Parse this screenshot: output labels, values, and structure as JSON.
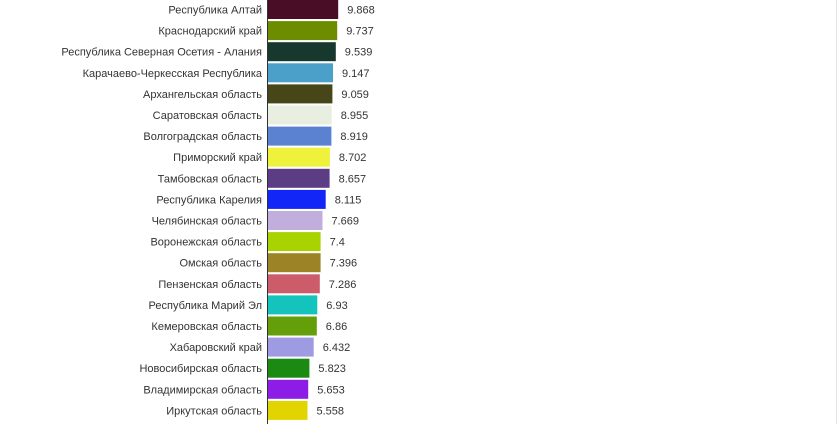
{
  "chart_data": {
    "type": "bar",
    "orientation": "horizontal",
    "categories": [
      "Республика Алтай",
      "Краснодарский край",
      "Республика Северная Осетия - Алания",
      "Карачаево-Черкесская Республика",
      "Архангельская область",
      "Саратовская область",
      "Волгоградская область",
      "Приморский край",
      "Тамбовская область",
      "Республика Карелия",
      "Челябинская область",
      "Воронежская область",
      "Омская область",
      "Пензенская область",
      "Республика Марий Эл",
      "Кемеровская область",
      "Хабаровский край",
      "Новосибирская область",
      "Владимирская область",
      "Иркутская область"
    ],
    "values": [
      9.868,
      9.737,
      9.539,
      9.147,
      9.059,
      8.955,
      8.919,
      8.702,
      8.657,
      8.115,
      7.669,
      7.4,
      7.396,
      7.286,
      6.93,
      6.86,
      6.432,
      5.823,
      5.653,
      5.558
    ],
    "value_labels": [
      "9.868",
      "9.737",
      "9.539",
      "9.147",
      "9.059",
      "8.955",
      "8.919",
      "8.702",
      "8.657",
      "8.115",
      "7.669",
      "7.4",
      "7.396",
      "7.286",
      "6.93",
      "6.86",
      "6.432",
      "5.823",
      "5.653",
      "5.558"
    ],
    "colors": [
      "#4a0d26",
      "#6e8c00",
      "#17392d",
      "#4aa0c8",
      "#464619",
      "#e8eee0",
      "#5b82d0",
      "#eef23b",
      "#5d3c86",
      "#1126f7",
      "#c1aedc",
      "#a8d200",
      "#9c8426",
      "#cc5c69",
      "#14c3bb",
      "#649e09",
      "#9f9be2",
      "#1b8a12",
      "#8d1ce6",
      "#e2d400"
    ],
    "title": "",
    "xlabel": "",
    "ylabel": "",
    "xlim": [
      0,
      10.6
    ],
    "grid": false,
    "legend": "none"
  }
}
